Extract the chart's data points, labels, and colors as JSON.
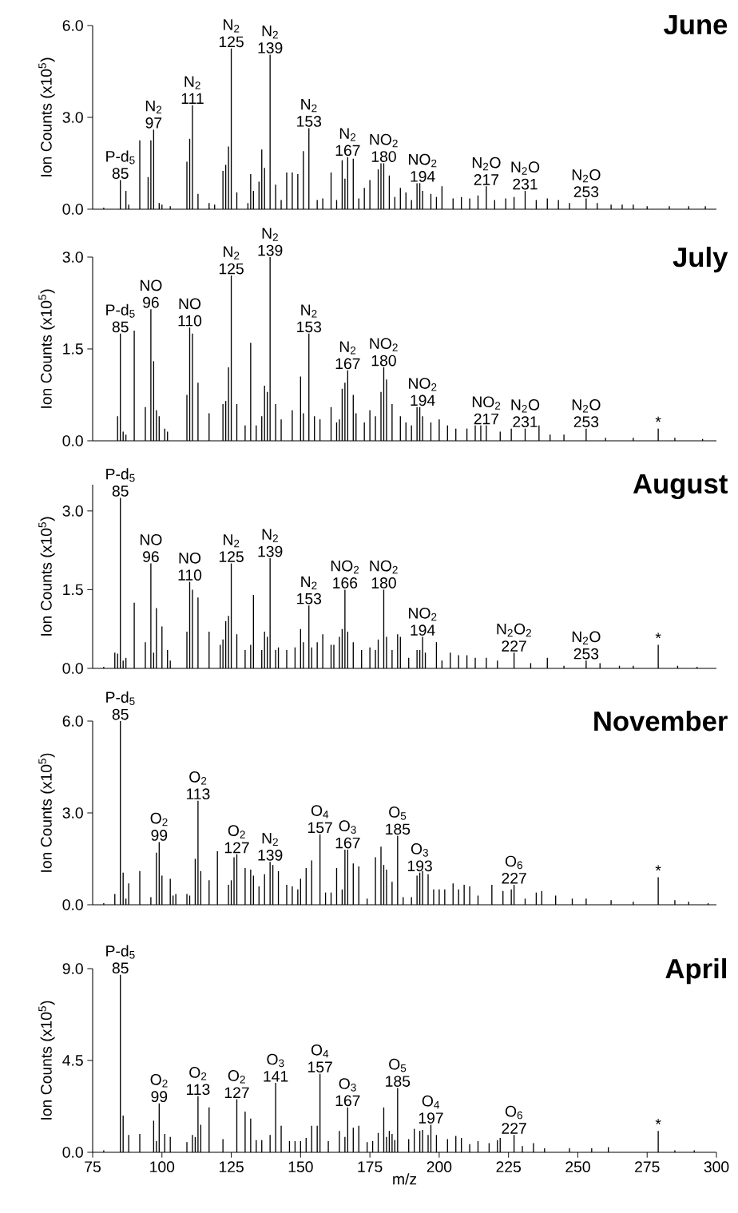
{
  "chart_data": [
    {
      "type": "bar",
      "title": "June",
      "ylabel": "Ion Counts (x10$^{5}$)",
      "color": "#000000",
      "xlim": [
        75,
        300
      ],
      "ylim": [
        0,
        6
      ],
      "tick_labels": "y",
      "yticks": [
        {
          "value": 0,
          "label": "0.0"
        },
        {
          "value": 3,
          "label": "3.0"
        },
        {
          "value": 6,
          "label": "6.0"
        }
      ],
      "x": [
        79,
        85,
        87,
        88,
        92,
        95,
        96,
        97,
        99,
        100,
        103,
        109,
        110,
        111,
        113,
        117,
        119,
        122,
        123,
        124,
        125,
        127,
        131,
        132,
        133,
        135,
        136,
        137,
        139,
        141,
        143,
        145,
        147,
        149,
        151,
        153,
        156,
        158,
        161,
        163,
        165,
        166,
        167,
        169,
        171,
        173,
        175,
        178,
        179,
        180,
        182,
        184,
        186,
        188,
        190,
        192,
        193,
        194,
        197,
        199,
        201,
        205,
        208,
        211,
        214,
        217,
        220,
        224,
        227,
        231,
        235,
        239,
        243,
        247,
        253,
        257,
        262,
        266,
        270,
        275,
        283,
        290,
        296
      ],
      "values": [
        0.05,
        0.95,
        0.6,
        0.15,
        2.25,
        1.05,
        2.25,
        2.6,
        0.2,
        0.15,
        0.1,
        1.55,
        2.3,
        3.4,
        0.5,
        0.2,
        0.15,
        1.25,
        1.45,
        2.05,
        5.25,
        0.55,
        0.2,
        1.15,
        0.6,
        0.9,
        1.95,
        1.35,
        5.05,
        0.8,
        0.3,
        1.2,
        1.2,
        1.15,
        1.9,
        2.65,
        0.3,
        0.35,
        1.2,
        0.3,
        1.6,
        1.0,
        1.7,
        1.65,
        0.35,
        0.7,
        0.95,
        1.3,
        1.5,
        1.5,
        1.1,
        0.4,
        0.7,
        0.55,
        0.3,
        0.85,
        0.85,
        0.6,
        0.5,
        0.4,
        0.75,
        0.35,
        0.4,
        0.35,
        0.45,
        0.75,
        0.3,
        0.35,
        0.4,
        0.6,
        0.3,
        0.35,
        0.3,
        0.2,
        0.35,
        0.2,
        0.15,
        0.15,
        0.15,
        0.1,
        0.1,
        0.1,
        0.1
      ],
      "annotations": [
        {
          "text": "P-d$_{5}$ 85",
          "x": 85,
          "y": 0.95
        },
        {
          "text": "N$_{2}$ 97",
          "x": 97,
          "y": 2.6
        },
        {
          "text": "N$_{2}$ 111",
          "x": 111,
          "y": 3.4
        },
        {
          "text": "N$_{2}$ 125",
          "x": 125,
          "y": 5.25
        },
        {
          "text": "N$_{2}$ 139",
          "x": 139,
          "y": 5.05
        },
        {
          "text": "N$_{2}$ 153",
          "x": 153,
          "y": 2.65
        },
        {
          "text": "N$_{2}$ 167",
          "x": 167,
          "y": 1.7
        },
        {
          "text": "NO$_{2}$ 180",
          "x": 180,
          "y": 1.5
        },
        {
          "text": "NO$_{2}$ 194",
          "x": 194,
          "y": 0.85
        },
        {
          "text": "N$_{2}$O 217",
          "x": 217,
          "y": 0.75
        },
        {
          "text": "N$_{2}$O 231",
          "x": 231,
          "y": 0.6
        },
        {
          "text": "N$_{2}$O 253",
          "x": 253,
          "y": 0.35
        }
      ]
    },
    {
      "type": "bar",
      "title": "July",
      "ylabel": "Ion Counts (x10$^{5}$)",
      "color": "#000000",
      "xlim": [
        75,
        300
      ],
      "ylim": [
        0,
        3
      ],
      "tick_labels": "y",
      "yticks": [
        {
          "value": 0,
          "label": "0.0"
        },
        {
          "value": 1.5,
          "label": "1.5"
        },
        {
          "value": 3,
          "label": "3.0"
        }
      ],
      "x": [
        84,
        85,
        86,
        87,
        90,
        94,
        96,
        97,
        98,
        99,
        101,
        102,
        109,
        110,
        111,
        113,
        117,
        122,
        123,
        124,
        125,
        127,
        130,
        132,
        134,
        136,
        137,
        138,
        139,
        141,
        143,
        147,
        150,
        151,
        153,
        155,
        157,
        161,
        163,
        164,
        165,
        166,
        167,
        169,
        170,
        173,
        175,
        177,
        179,
        180,
        181,
        183,
        186,
        188,
        190,
        192,
        193,
        194,
        197,
        200,
        203,
        206,
        210,
        213,
        215,
        217,
        222,
        226,
        231,
        236,
        240,
        245,
        253,
        260,
        270,
        279,
        285,
        295
      ],
      "values": [
        0.4,
        1.75,
        0.15,
        0.1,
        1.8,
        0.55,
        2.15,
        1.3,
        0.5,
        0.4,
        0.2,
        0.15,
        0.75,
        1.85,
        1.75,
        0.95,
        0.45,
        0.6,
        0.65,
        1.2,
        2.7,
        0.6,
        0.25,
        1.6,
        0.25,
        0.4,
        0.9,
        0.8,
        3.0,
        0.6,
        0.35,
        0.5,
        1.05,
        0.45,
        1.75,
        0.4,
        0.35,
        0.55,
        0.3,
        0.35,
        0.85,
        0.95,
        1.15,
        0.75,
        0.45,
        0.3,
        0.5,
        0.4,
        0.8,
        1.2,
        1.0,
        0.6,
        0.4,
        0.3,
        0.25,
        0.55,
        0.55,
        0.4,
        0.3,
        0.35,
        0.25,
        0.2,
        0.2,
        0.25,
        0.25,
        0.25,
        0.15,
        0.2,
        0.2,
        0.25,
        0.1,
        0.1,
        0.2,
        0.05,
        0.05,
        0.2,
        0.05,
        0.03
      ],
      "annotations": [
        {
          "text": "P-d$_{5}$ 85",
          "x": 85,
          "y": 1.75
        },
        {
          "text": "NO 96",
          "x": 96,
          "y": 2.15
        },
        {
          "text": "NO 110",
          "x": 110,
          "y": 1.85
        },
        {
          "text": "N$_{2}$ 125",
          "x": 125,
          "y": 2.7
        },
        {
          "text": "N$_{2}$ 139",
          "x": 139,
          "y": 3.0
        },
        {
          "text": "N$_{2}$ 153",
          "x": 153,
          "y": 1.75
        },
        {
          "text": "N$_{2}$ 167",
          "x": 167,
          "y": 1.15
        },
        {
          "text": "NO$_{2}$ 180",
          "x": 180,
          "y": 1.2
        },
        {
          "text": "NO$_{2}$ 194",
          "x": 194,
          "y": 0.55
        },
        {
          "text": "NO$_{2}$ 217",
          "x": 217,
          "y": 0.25
        },
        {
          "text": "N$_{2}$O 231",
          "x": 231,
          "y": 0.2
        },
        {
          "text": "N$_{2}$O 253",
          "x": 253,
          "y": 0.2
        },
        {
          "text": "*",
          "x": 279,
          "y": 0.2
        }
      ]
    },
    {
      "type": "bar",
      "title": "August",
      "ylabel": "Ion Counts (x10$^{5}$)",
      "color": "#000000",
      "xlim": [
        75,
        300
      ],
      "ylim": [
        0,
        3.5
      ],
      "tick_labels": "y",
      "yticks": [
        {
          "value": 0,
          "label": "0.0"
        },
        {
          "value": 1.5,
          "label": "1.5"
        },
        {
          "value": 3,
          "label": "3.0"
        }
      ],
      "x": [
        79,
        83,
        84,
        85,
        86,
        87,
        90,
        94,
        96,
        97,
        98,
        100,
        102,
        103,
        109,
        110,
        111,
        113,
        117,
        121,
        122,
        123,
        124,
        125,
        127,
        130,
        132,
        133,
        136,
        137,
        138,
        139,
        141,
        142,
        145,
        148,
        150,
        151,
        153,
        154,
        156,
        158,
        161,
        162,
        164,
        165,
        166,
        167,
        169,
        172,
        175,
        177,
        178,
        180,
        181,
        183,
        185,
        186,
        189,
        192,
        193,
        194,
        195,
        199,
        201,
        204,
        207,
        210,
        213,
        217,
        221,
        227,
        233,
        239,
        245,
        253,
        258,
        265,
        270,
        279,
        286,
        293
      ],
      "values": [
        0.03,
        0.3,
        0.28,
        3.25,
        0.15,
        0.2,
        1.25,
        0.5,
        2.0,
        0.3,
        1.15,
        0.8,
        0.35,
        0.15,
        0.7,
        1.65,
        1.5,
        1.35,
        0.7,
        0.45,
        0.55,
        0.9,
        1.0,
        2.0,
        0.65,
        0.35,
        0.45,
        1.4,
        0.35,
        0.7,
        0.6,
        2.1,
        0.35,
        0.4,
        0.35,
        0.4,
        0.75,
        0.5,
        1.2,
        0.4,
        0.5,
        0.65,
        0.45,
        0.45,
        0.6,
        0.75,
        1.5,
        0.7,
        0.5,
        0.35,
        0.4,
        0.35,
        0.55,
        1.5,
        0.6,
        0.35,
        0.65,
        0.6,
        0.2,
        0.35,
        0.35,
        0.6,
        0.3,
        0.5,
        0.15,
        0.3,
        0.25,
        0.25,
        0.2,
        0.2,
        0.15,
        0.3,
        0.1,
        0.2,
        0.05,
        0.15,
        0.1,
        0.05,
        0.05,
        0.45,
        0.05,
        0.03
      ],
      "annotations": [
        {
          "text": "P-d$_{5}$ 85",
          "x": 85,
          "y": 3.25
        },
        {
          "text": "NO 96",
          "x": 96,
          "y": 2.0
        },
        {
          "text": "NO 110",
          "x": 110,
          "y": 1.65
        },
        {
          "text": "N$_{2}$ 125",
          "x": 125,
          "y": 2.0
        },
        {
          "text": "N$_{2}$ 139",
          "x": 139,
          "y": 2.1
        },
        {
          "text": "N$_{2}$ 153",
          "x": 153,
          "y": 1.2
        },
        {
          "text": "NO$_{2}$ 166",
          "x": 166,
          "y": 1.5
        },
        {
          "text": "NO$_{2}$ 180",
          "x": 180,
          "y": 1.5
        },
        {
          "text": "NO$_{2}$ 194",
          "x": 194,
          "y": 0.6
        },
        {
          "text": "N$_{2}$O$_{2}$ 227",
          "x": 227,
          "y": 0.3
        },
        {
          "text": "N$_{2}$O 253",
          "x": 253,
          "y": 0.15
        },
        {
          "text": "*",
          "x": 279,
          "y": 0.45
        }
      ]
    },
    {
      "type": "bar",
      "title": "November",
      "ylabel": "Ion Counts (x10$^{5}$)",
      "color": "#000000",
      "xlim": [
        75,
        300
      ],
      "ylim": [
        0,
        6
      ],
      "tick_labels": "y",
      "yticks": [
        {
          "value": 0,
          "label": "0.0"
        },
        {
          "value": 3,
          "label": "3.0"
        },
        {
          "value": 6,
          "label": "6.0"
        }
      ],
      "x": [
        79,
        83,
        85,
        86,
        87,
        88,
        92,
        96,
        98,
        99,
        100,
        103,
        104,
        105,
        109,
        110,
        112,
        113,
        114,
        117,
        120,
        124,
        125,
        126,
        127,
        130,
        132,
        133,
        135,
        137,
        139,
        140,
        142,
        145,
        147,
        149,
        150,
        152,
        154,
        157,
        159,
        161,
        163,
        165,
        166,
        167,
        169,
        171,
        174,
        177,
        179,
        180,
        181,
        183,
        185,
        187,
        190,
        192,
        193,
        194,
        196,
        198,
        200,
        202,
        205,
        207,
        209,
        211,
        214,
        219,
        223,
        226,
        227,
        231,
        235,
        237,
        242,
        248,
        253,
        262,
        270,
        279,
        285,
        290,
        297
      ],
      "values": [
        0.05,
        0.35,
        6.0,
        1.05,
        0.2,
        0.7,
        1.1,
        0.25,
        1.7,
        2.05,
        0.95,
        0.85,
        0.3,
        0.35,
        0.35,
        0.3,
        1.5,
        3.4,
        1.1,
        0.8,
        1.75,
        0.65,
        0.8,
        1.55,
        1.65,
        1.2,
        1.15,
        0.95,
        0.6,
        1.0,
        1.4,
        1.3,
        1.1,
        0.65,
        0.6,
        0.5,
        0.85,
        1.2,
        1.45,
        2.3,
        0.4,
        0.4,
        1.2,
        0.5,
        1.8,
        1.8,
        1.35,
        1.25,
        0.2,
        1.55,
        1.9,
        1.3,
        1.15,
        0.75,
        2.25,
        0.25,
        0.25,
        0.95,
        1.05,
        1.1,
        1.0,
        0.5,
        0.5,
        0.5,
        0.7,
        0.5,
        0.65,
        0.6,
        0.3,
        0.65,
        0.45,
        0.5,
        0.65,
        0.2,
        0.4,
        0.45,
        0.3,
        0.2,
        0.2,
        0.15,
        0.1,
        0.9,
        0.15,
        0.1,
        0.05
      ],
      "annotations": [
        {
          "text": "P-d$_{5}$ 85",
          "x": 85,
          "y": 6.0
        },
        {
          "text": "O$_{2}$ 99",
          "x": 99,
          "y": 2.05
        },
        {
          "text": "O$_{2}$ 113",
          "x": 113,
          "y": 3.4
        },
        {
          "text": "O$_{2}$ 127",
          "x": 127,
          "y": 1.65
        },
        {
          "text": "N$_{2}$ 139",
          "x": 139,
          "y": 1.4
        },
        {
          "text": "O$_{4}$ 157",
          "x": 157,
          "y": 2.3
        },
        {
          "text": "O$_{3}$ 167",
          "x": 167,
          "y": 1.8
        },
        {
          "text": "O$_{5}$ 185",
          "x": 185,
          "y": 2.25
        },
        {
          "text": "O$_{3}$ 193",
          "x": 193,
          "y": 1.05
        },
        {
          "text": "O$_{6}$ 227",
          "x": 227,
          "y": 0.65
        },
        {
          "text": "*",
          "x": 279,
          "y": 0.9
        }
      ]
    },
    {
      "type": "bar",
      "title": "April",
      "ylabel": "Ion Counts (x10$^{5}$)",
      "xlabel": "m/z",
      "color": "#000000",
      "xlim": [
        75,
        300
      ],
      "ylim": [
        0,
        9
      ],
      "xticks": [
        75,
        100,
        125,
        150,
        175,
        200,
        225,
        250,
        275,
        300
      ],
      "yticks": [
        {
          "value": 0,
          "label": "0.0"
        },
        {
          "value": 4.5,
          "label": "4.5"
        },
        {
          "value": 9,
          "label": "9.0"
        }
      ],
      "x": [
        79,
        85,
        86,
        88,
        92,
        97,
        98,
        99,
        101,
        103,
        109,
        111,
        112,
        113,
        114,
        117,
        122,
        127,
        130,
        132,
        134,
        136,
        139,
        141,
        143,
        146,
        148,
        150,
        152,
        154,
        156,
        157,
        160,
        164,
        166,
        167,
        169,
        171,
        174,
        176,
        178,
        180,
        181,
        182,
        183,
        184,
        185,
        189,
        191,
        193,
        194,
        196,
        197,
        199,
        203,
        206,
        208,
        211,
        214,
        218,
        221,
        222,
        227,
        230,
        234,
        238,
        247,
        255,
        261,
        279,
        285,
        292
      ],
      "values": [
        0.1,
        8.7,
        1.8,
        0.85,
        0.9,
        1.55,
        0.55,
        2.4,
        0.9,
        0.75,
        0.5,
        0.85,
        0.75,
        2.75,
        1.35,
        2.2,
        0.65,
        2.6,
        2.0,
        1.65,
        0.6,
        0.6,
        0.85,
        3.4,
        1.3,
        0.55,
        0.55,
        0.55,
        0.7,
        1.3,
        1.3,
        3.85,
        0.55,
        1.05,
        0.75,
        2.2,
        1.2,
        1.3,
        0.5,
        0.55,
        0.95,
        2.2,
        0.75,
        1.05,
        0.9,
        0.6,
        3.15,
        0.65,
        1.15,
        1.05,
        1.1,
        0.85,
        1.35,
        0.85,
        0.65,
        0.8,
        0.7,
        0.4,
        0.55,
        0.45,
        0.6,
        0.7,
        0.85,
        0.3,
        0.45,
        0.2,
        0.2,
        0.2,
        0.25,
        1.05,
        0.1,
        0.1
      ],
      "annotations": [
        {
          "text": "P-d$_{5}$ 85",
          "x": 85,
          "y": 8.7
        },
        {
          "text": "O$_{2}$ 99",
          "x": 99,
          "y": 2.4
        },
        {
          "text": "O$_{2}$ 113",
          "x": 113,
          "y": 2.75
        },
        {
          "text": "O$_{2}$ 127",
          "x": 127,
          "y": 2.6
        },
        {
          "text": "O$_{3}$ 141",
          "x": 141,
          "y": 3.4
        },
        {
          "text": "O$_{4}$ 157",
          "x": 157,
          "y": 3.85
        },
        {
          "text": "O$_{3}$ 167",
          "x": 167,
          "y": 2.2
        },
        {
          "text": "O$_{5}$ 185",
          "x": 185,
          "y": 3.15
        },
        {
          "text": "O$_{4}$ 197",
          "x": 197,
          "y": 1.35
        },
        {
          "text": "O$_{6}$ 227",
          "x": 227,
          "y": 0.85
        },
        {
          "text": "*",
          "x": 279,
          "y": 1.05
        }
      ]
    }
  ]
}
